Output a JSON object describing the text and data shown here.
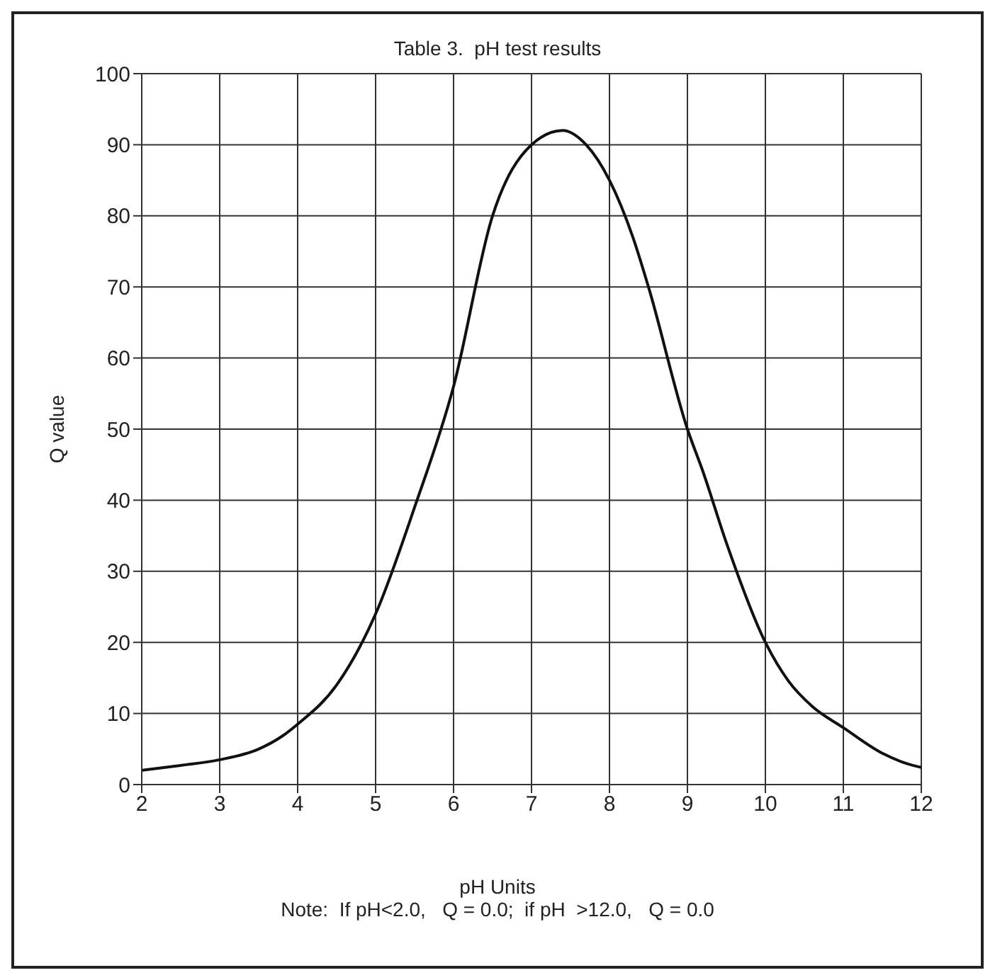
{
  "chart_data": {
    "type": "line",
    "title": "Table 3.  pH test results",
    "xlabel": "pH Units",
    "ylabel": "Q value",
    "annotations": [
      "Note:  If pH<2.0,   Q = 0.0;  if pH  >12.0,   Q = 0.0"
    ],
    "series": [
      {
        "color": "#111111",
        "x": [
          2,
          2.5,
          3,
          3.5,
          3.8,
          4,
          4.5,
          5,
          5.5,
          6,
          6.5,
          7,
          7.4,
          7.7,
          8,
          8.3,
          8.5,
          9,
          9.2,
          9.5,
          10,
          10.3,
          10.6,
          11,
          11.5,
          11.8,
          12
        ],
        "values": [
          2,
          2.7,
          3.5,
          5,
          6.8,
          8.5,
          14,
          24,
          39,
          56,
          80,
          90,
          92,
          90,
          85,
          77,
          70,
          50,
          44,
          34,
          20,
          14.5,
          11,
          8,
          4.4,
          3,
          2.4
        ]
      }
    ],
    "xlim": [
      2,
      12
    ],
    "xticks": [
      2,
      3,
      4,
      5,
      6,
      7,
      8,
      9,
      10,
      11,
      12
    ],
    "ylim": [
      0,
      100
    ],
    "yticks": [
      0,
      10,
      20,
      30,
      40,
      50,
      60,
      70,
      80,
      90,
      100
    ],
    "grid": true,
    "marker": "none",
    "line_style": "solid"
  }
}
